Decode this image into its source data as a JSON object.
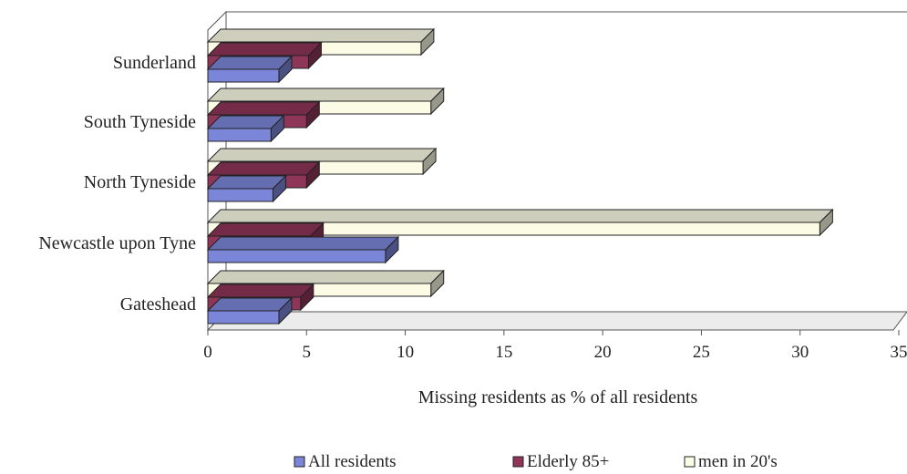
{
  "chart_data": {
    "type": "bar",
    "orientation": "horizontal",
    "style": "3d",
    "title": "",
    "xlabel": "Missing residents as % of all residents",
    "ylabel": "",
    "xlim": [
      0,
      35
    ],
    "xticks": [
      0,
      5,
      10,
      15,
      20,
      25,
      30,
      35
    ],
    "categories": [
      "Gateshead",
      "Newcastle upon Tyne",
      "North Tyneside",
      "South Tyneside",
      "Sunderland"
    ],
    "series": [
      {
        "name": "All residents",
        "color": "#7b86d8",
        "values": [
          3.6,
          9.0,
          3.3,
          3.2,
          3.6
        ]
      },
      {
        "name": "Elderly 85+",
        "color": "#8e3558",
        "values": [
          4.7,
          5.2,
          5.0,
          5.0,
          5.1
        ]
      },
      {
        "name": "men in 20's",
        "color": "#fbfbe6",
        "values": [
          11.3,
          31.0,
          10.9,
          11.3,
          10.8
        ]
      }
    ],
    "legend_position": "bottom",
    "grid": false
  }
}
